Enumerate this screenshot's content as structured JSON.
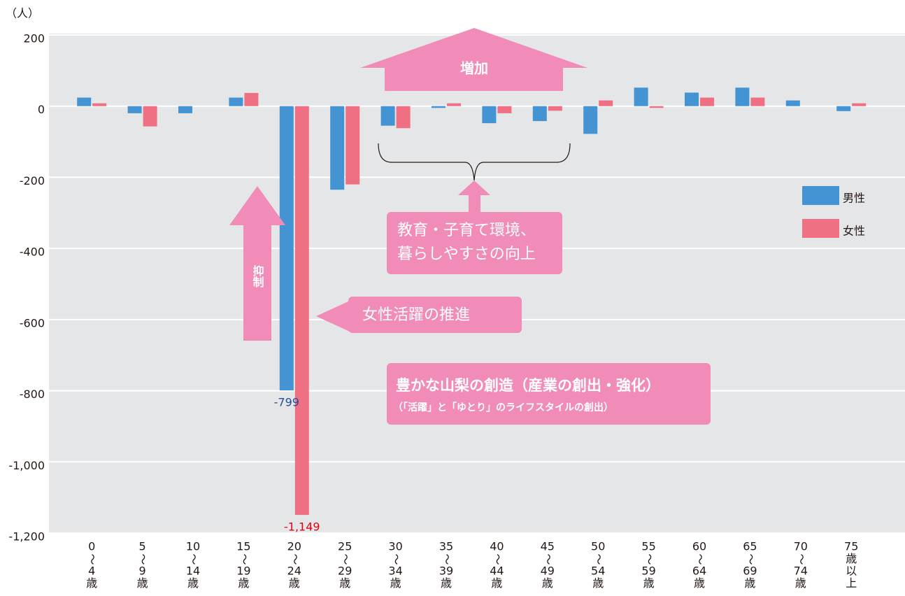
{
  "chart_data": {
    "type": "bar",
    "y_label": "（人）",
    "categories": [
      [
        "0",
        "〜",
        "4",
        "歳"
      ],
      [
        "5",
        "〜",
        "9",
        "歳"
      ],
      [
        "10",
        "〜",
        "14",
        "歳"
      ],
      [
        "15",
        "〜",
        "19",
        "歳"
      ],
      [
        "20",
        "〜",
        "24",
        "歳"
      ],
      [
        "25",
        "〜",
        "29",
        "歳"
      ],
      [
        "30",
        "〜",
        "34",
        "歳"
      ],
      [
        "35",
        "〜",
        "39",
        "歳"
      ],
      [
        "40",
        "〜",
        "44",
        "歳"
      ],
      [
        "45",
        "〜",
        "49",
        "歳"
      ],
      [
        "50",
        "〜",
        "54",
        "歳"
      ],
      [
        "55",
        "〜",
        "59",
        "歳"
      ],
      [
        "60",
        "〜",
        "64",
        "歳"
      ],
      [
        "65",
        "〜",
        "69",
        "歳"
      ],
      [
        "70",
        "〜",
        "74",
        "歳"
      ],
      [
        "75",
        "歳",
        "以",
        "上"
      ]
    ],
    "series": [
      {
        "name": "男性",
        "color": "#4494d3",
        "label_color": "#1f4e9c",
        "values": [
          24,
          -20,
          -20,
          24,
          -799,
          -235,
          -55,
          -5,
          -48,
          -42,
          -78,
          52,
          38,
          52,
          16,
          -14
        ],
        "value_labels": [
          null,
          null,
          null,
          null,
          "-799",
          null,
          null,
          null,
          null,
          null,
          null,
          null,
          null,
          null,
          null,
          null
        ]
      },
      {
        "name": "女性",
        "color": "#f07083",
        "label_color": "#e60012",
        "values": [
          8,
          -57,
          0,
          37,
          -1149,
          -220,
          -62,
          8,
          -20,
          -13,
          16,
          -5,
          24,
          24,
          0,
          8
        ],
        "value_labels": [
          null,
          null,
          null,
          null,
          "-1,149",
          null,
          null,
          null,
          null,
          null,
          null,
          null,
          null,
          null,
          null,
          null
        ]
      }
    ],
    "ylim": [
      -1200,
      200
    ],
    "yticks": [
      200,
      0,
      -200,
      -400,
      -600,
      -800,
      {
        "value": -1000,
        "label": "-1,000"
      },
      {
        "value": -1200,
        "label": "-1,200"
      }
    ],
    "grid": true,
    "annotations": {
      "increase": "増加",
      "restrain": "抑制",
      "education": [
        "教育・子育て環境、",
        "暮らしやすさの向上"
      ],
      "women": "女性活躍の推進",
      "creation": "豊かな山梨の創造（産業の創出・強化）",
      "creation_sub": "（「活躍」と「ゆとり」のライフスタイルの創出）"
    }
  }
}
